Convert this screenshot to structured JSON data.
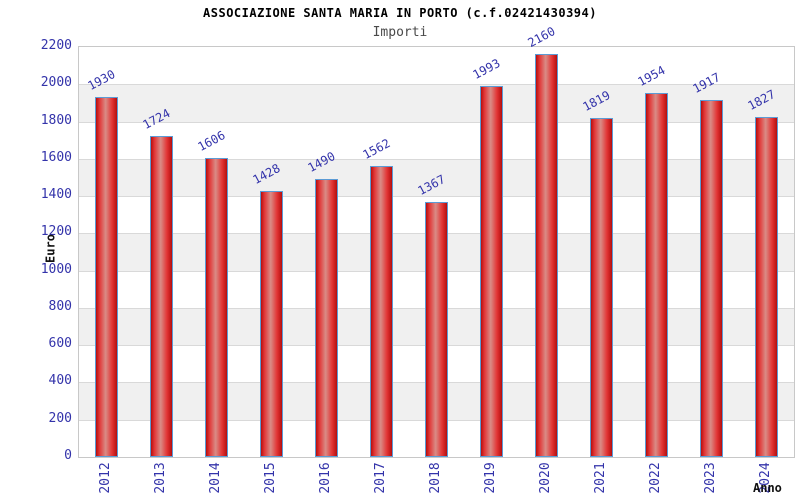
{
  "chart_data": {
    "type": "bar",
    "title": "ASSOCIAZIONE SANTA MARIA IN PORTO (c.f.02421430394)",
    "subtitle": "Importi",
    "xlabel": "Anno",
    "ylabel": "Euro",
    "categories": [
      "2012",
      "2013",
      "2014",
      "2015",
      "2016",
      "2017",
      "2018",
      "2019",
      "2020",
      "2021",
      "2022",
      "2023",
      "2024"
    ],
    "values": [
      1930,
      1724,
      1606,
      1428,
      1490,
      1562,
      1367,
      1993,
      2160,
      1819,
      1954,
      1917,
      1827
    ],
    "ylim": [
      0,
      2200
    ],
    "ytick_step": 200,
    "grid": true,
    "legend": "none",
    "bar_labels_rotated": true,
    "colors": {
      "axis_label_color": "#3333aa",
      "value_label_color": "#3333aa",
      "bar_border": "#5b9bd5",
      "bar_edge_dark": "#b50e0e",
      "bar_red": "#e23535",
      "bar_highlight": "#d98c86",
      "band_gray": "#f0f0f0",
      "gridline_color": "#d9d9d9",
      "plot_border": "#c8c8c8",
      "title_color": "#000000",
      "subtitle_color": "#4a4a4a",
      "axis_title_color": "#111111",
      "background": "#ffffff"
    }
  }
}
